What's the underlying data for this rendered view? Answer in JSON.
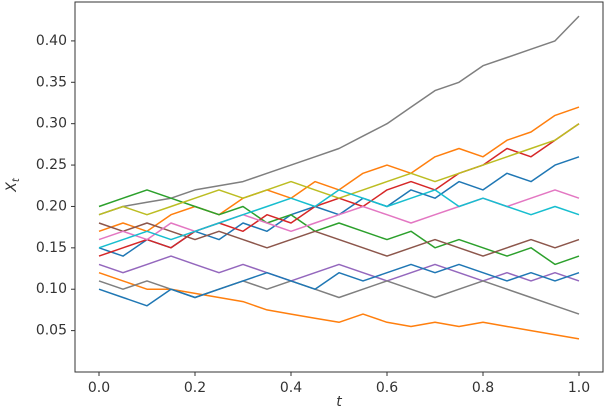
{
  "chart_data": {
    "type": "line",
    "x_label": "t",
    "y_label": {
      "main": "X",
      "sub": "t"
    },
    "xlim": [
      -0.05,
      1.05
    ],
    "ylim": [
      0.0,
      0.447
    ],
    "xticks": [
      {
        "value": 0,
        "label": "0.0"
      },
      0.2,
      0.4,
      0.6,
      0.8,
      {
        "value": 1,
        "label": "1.0"
      }
    ],
    "yticks": [
      0.05,
      {
        "value": 0.1,
        "label": "0.10"
      },
      0.15,
      {
        "value": 0.2,
        "label": "0.20"
      },
      0.25,
      {
        "value": 0.3,
        "label": "0.30"
      },
      0.35,
      {
        "value": 0.4,
        "label": "0.40"
      }
    ],
    "x": [
      0,
      0.05,
      0.1,
      0.15,
      0.2,
      0.25,
      0.3,
      0.35,
      0.4,
      0.45,
      0.5,
      0.55,
      0.6,
      0.65,
      0.7,
      0.75,
      0.8,
      0.85,
      0.9,
      0.95,
      1
    ],
    "series": [
      {
        "color": "#7f7f7f",
        "values": [
          0.19,
          0.2,
          0.205,
          0.21,
          0.22,
          0.225,
          0.23,
          0.24,
          0.25,
          0.26,
          0.27,
          0.285,
          0.3,
          0.32,
          0.34,
          0.35,
          0.37,
          0.38,
          0.39,
          0.4,
          0.43
        ]
      },
      {
        "color": "#ff7f0e",
        "values": [
          0.12,
          0.11,
          0.1,
          0.1,
          0.095,
          0.09,
          0.085,
          0.075,
          0.07,
          0.065,
          0.06,
          0.07,
          0.06,
          0.055,
          0.06,
          0.055,
          0.06,
          0.055,
          0.05,
          0.045,
          0.04
        ]
      },
      {
        "color": "#1f77b4",
        "values": [
          0.15,
          0.14,
          0.16,
          0.15,
          0.17,
          0.16,
          0.18,
          0.17,
          0.19,
          0.2,
          0.19,
          0.21,
          0.2,
          0.22,
          0.21,
          0.23,
          0.22,
          0.24,
          0.23,
          0.25,
          0.26
        ]
      },
      {
        "color": "#ff7f0e",
        "values": [
          0.17,
          0.18,
          0.17,
          0.19,
          0.2,
          0.19,
          0.21,
          0.22,
          0.21,
          0.23,
          0.22,
          0.24,
          0.25,
          0.24,
          0.26,
          0.27,
          0.26,
          0.28,
          0.29,
          0.31,
          0.32
        ]
      },
      {
        "color": "#2ca02c",
        "values": [
          0.2,
          0.21,
          0.22,
          0.21,
          0.2,
          0.19,
          0.2,
          0.18,
          0.19,
          0.17,
          0.18,
          0.17,
          0.16,
          0.17,
          0.15,
          0.16,
          0.15,
          0.14,
          0.15,
          0.13,
          0.14
        ]
      },
      {
        "color": "#d62728",
        "values": [
          0.14,
          0.15,
          0.16,
          0.15,
          0.17,
          0.18,
          0.17,
          0.19,
          0.18,
          0.2,
          0.21,
          0.2,
          0.22,
          0.23,
          0.22,
          0.24,
          0.25,
          0.27,
          0.26,
          0.28,
          0.3
        ]
      },
      {
        "color": "#9467bd",
        "values": [
          0.13,
          0.12,
          0.13,
          0.14,
          0.13,
          0.12,
          0.13,
          0.12,
          0.11,
          0.12,
          0.13,
          0.12,
          0.11,
          0.12,
          0.13,
          0.12,
          0.11,
          0.12,
          0.11,
          0.12,
          0.11
        ]
      },
      {
        "color": "#8c564b",
        "values": [
          0.18,
          0.17,
          0.18,
          0.17,
          0.16,
          0.17,
          0.16,
          0.15,
          0.16,
          0.17,
          0.16,
          0.15,
          0.14,
          0.15,
          0.16,
          0.15,
          0.14,
          0.15,
          0.16,
          0.15,
          0.16
        ]
      },
      {
        "color": "#e377c2",
        "values": [
          0.16,
          0.17,
          0.16,
          0.18,
          0.17,
          0.18,
          0.19,
          0.18,
          0.17,
          0.18,
          0.19,
          0.2,
          0.19,
          0.18,
          0.19,
          0.2,
          0.21,
          0.2,
          0.21,
          0.22,
          0.21
        ]
      },
      {
        "color": "#7f7f7f",
        "values": [
          0.11,
          0.1,
          0.11,
          0.1,
          0.09,
          0.1,
          0.11,
          0.1,
          0.11,
          0.1,
          0.09,
          0.1,
          0.11,
          0.1,
          0.09,
          0.1,
          0.11,
          0.1,
          0.09,
          0.08,
          0.07
        ]
      },
      {
        "color": "#bcbd22",
        "values": [
          0.19,
          0.2,
          0.19,
          0.2,
          0.21,
          0.22,
          0.21,
          0.22,
          0.23,
          0.22,
          0.21,
          0.22,
          0.23,
          0.24,
          0.23,
          0.24,
          0.25,
          0.26,
          0.27,
          0.28,
          0.3
        ]
      },
      {
        "color": "#17becf",
        "values": [
          0.15,
          0.16,
          0.17,
          0.16,
          0.17,
          0.18,
          0.19,
          0.2,
          0.21,
          0.2,
          0.22,
          0.21,
          0.2,
          0.21,
          0.22,
          0.2,
          0.21,
          0.2,
          0.19,
          0.2,
          0.19
        ]
      },
      {
        "color": "#1f77b4",
        "values": [
          0.1,
          0.09,
          0.08,
          0.1,
          0.09,
          0.1,
          0.11,
          0.12,
          0.11,
          0.1,
          0.12,
          0.11,
          0.12,
          0.13,
          0.12,
          0.13,
          0.12,
          0.11,
          0.12,
          0.11,
          0.12
        ]
      }
    ]
  }
}
